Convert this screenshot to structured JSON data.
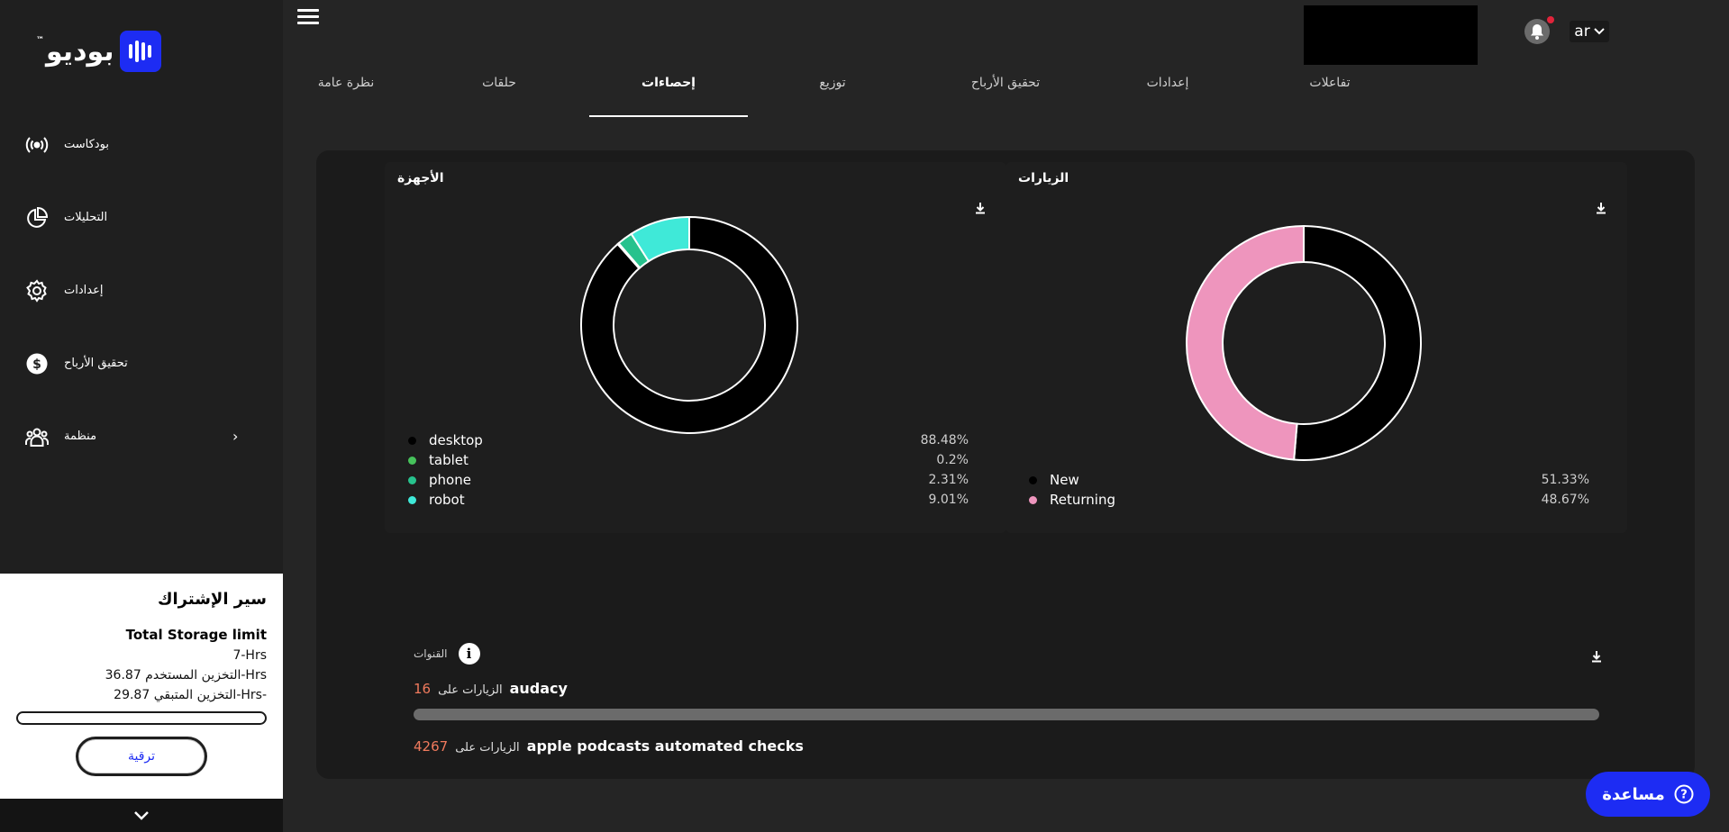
{
  "brand": {
    "name": "بوديو",
    "tm": "™"
  },
  "sidebar": {
    "items": [
      {
        "label": "بودكاست",
        "icon": "broadcast-icon"
      },
      {
        "label": "التحليلات",
        "icon": "pie-chart-icon"
      },
      {
        "label": "إعدادات",
        "icon": "gear-icon"
      },
      {
        "label": "تحقيق الأرباح",
        "icon": "dollar-icon"
      },
      {
        "label": "منظمة",
        "icon": "team-icon"
      }
    ]
  },
  "subscription": {
    "title": "سير الإشتراك",
    "limit_label": "Total Storage limit",
    "limit_value": "7-Hrs",
    "used": "التخزين المستخدم 36.87-Hrs",
    "remaining": "التخزين المتبقي 29.87-Hrs-",
    "upgrade_label": "ترقية",
    "usage_fraction": 1.0
  },
  "header": {
    "lang": "ar"
  },
  "tabs": [
    {
      "label": "تفاعلات",
      "active": false
    },
    {
      "label": "إعدادات",
      "active": false
    },
    {
      "label": "تحقيق الأرباح",
      "active": false
    },
    {
      "label": "توزيع",
      "active": false
    },
    {
      "label": "إحصاءات",
      "active": true
    },
    {
      "label": "حلقات",
      "active": false
    },
    {
      "label": "نظرة عامة",
      "active": false
    }
  ],
  "devices_panel": {
    "title": "الأجهزة"
  },
  "visits_panel": {
    "title": "الزيارات"
  },
  "chart_data": [
    {
      "type": "pie",
      "title": "الأجهزة",
      "categories": [
        "desktop",
        "tablet",
        "phone",
        "robot"
      ],
      "values": [
        88.48,
        0.2,
        2.31,
        9.01
      ],
      "labels": [
        "88.48%",
        "0.2%",
        "2.31%",
        "9.01%"
      ],
      "colors": [
        "#000000",
        "#46c25b",
        "#27c28d",
        "#3fe9d8"
      ]
    },
    {
      "type": "pie",
      "title": "الزيارات",
      "categories": [
        "New",
        "Returning"
      ],
      "values": [
        51.33,
        48.67
      ],
      "labels": [
        "51.33%",
        "48.67%"
      ],
      "colors": [
        "#000000",
        "#ee95bd"
      ]
    }
  ],
  "channels": {
    "title": "القنوات",
    "visits_on": "الزيارات على",
    "items": [
      {
        "name": "audacy",
        "count": "16"
      },
      {
        "name": "apple podcasts automated checks",
        "count": "4267"
      }
    ]
  },
  "help": {
    "label": "مساعدة"
  }
}
